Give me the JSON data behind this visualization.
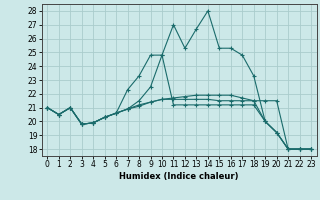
{
  "xlabel": "Humidex (Indice chaleur)",
  "ylabel": "",
  "background_color": "#cce8e8",
  "grid_color": "#aacccc",
  "line_color": "#1a6b6b",
  "xlim": [
    -0.5,
    23.5
  ],
  "ylim": [
    17.5,
    28.5
  ],
  "xticks": [
    0,
    1,
    2,
    3,
    4,
    5,
    6,
    7,
    8,
    9,
    10,
    11,
    12,
    13,
    14,
    15,
    16,
    17,
    18,
    19,
    20,
    21,
    22,
    23
  ],
  "yticks": [
    18,
    19,
    20,
    21,
    22,
    23,
    24,
    25,
    26,
    27,
    28
  ],
  "series": [
    [
      21.0,
      20.5,
      21.0,
      19.8,
      19.9,
      20.3,
      20.6,
      20.9,
      21.2,
      21.4,
      21.6,
      21.6,
      21.6,
      21.6,
      21.6,
      21.5,
      21.5,
      21.5,
      21.5,
      21.5,
      21.5,
      18.0,
      18.0,
      18.0
    ],
    [
      21.0,
      20.5,
      21.0,
      19.8,
      19.9,
      20.3,
      20.6,
      20.9,
      21.5,
      22.5,
      24.8,
      27.0,
      25.3,
      26.7,
      28.0,
      25.3,
      25.3,
      24.8,
      23.3,
      20.0,
      19.2,
      18.0,
      18.0,
      18.0
    ],
    [
      21.0,
      20.5,
      21.0,
      19.8,
      19.9,
      20.3,
      20.6,
      22.3,
      23.3,
      24.8,
      24.8,
      21.2,
      21.2,
      21.2,
      21.2,
      21.2,
      21.2,
      21.2,
      21.2,
      20.0,
      19.2,
      18.0,
      18.0,
      18.0
    ],
    [
      21.0,
      20.5,
      21.0,
      19.8,
      19.9,
      20.3,
      20.6,
      20.9,
      21.1,
      21.4,
      21.6,
      21.7,
      21.8,
      21.9,
      21.9,
      21.9,
      21.9,
      21.7,
      21.5,
      20.0,
      19.2,
      18.0,
      18.0,
      18.0
    ]
  ]
}
